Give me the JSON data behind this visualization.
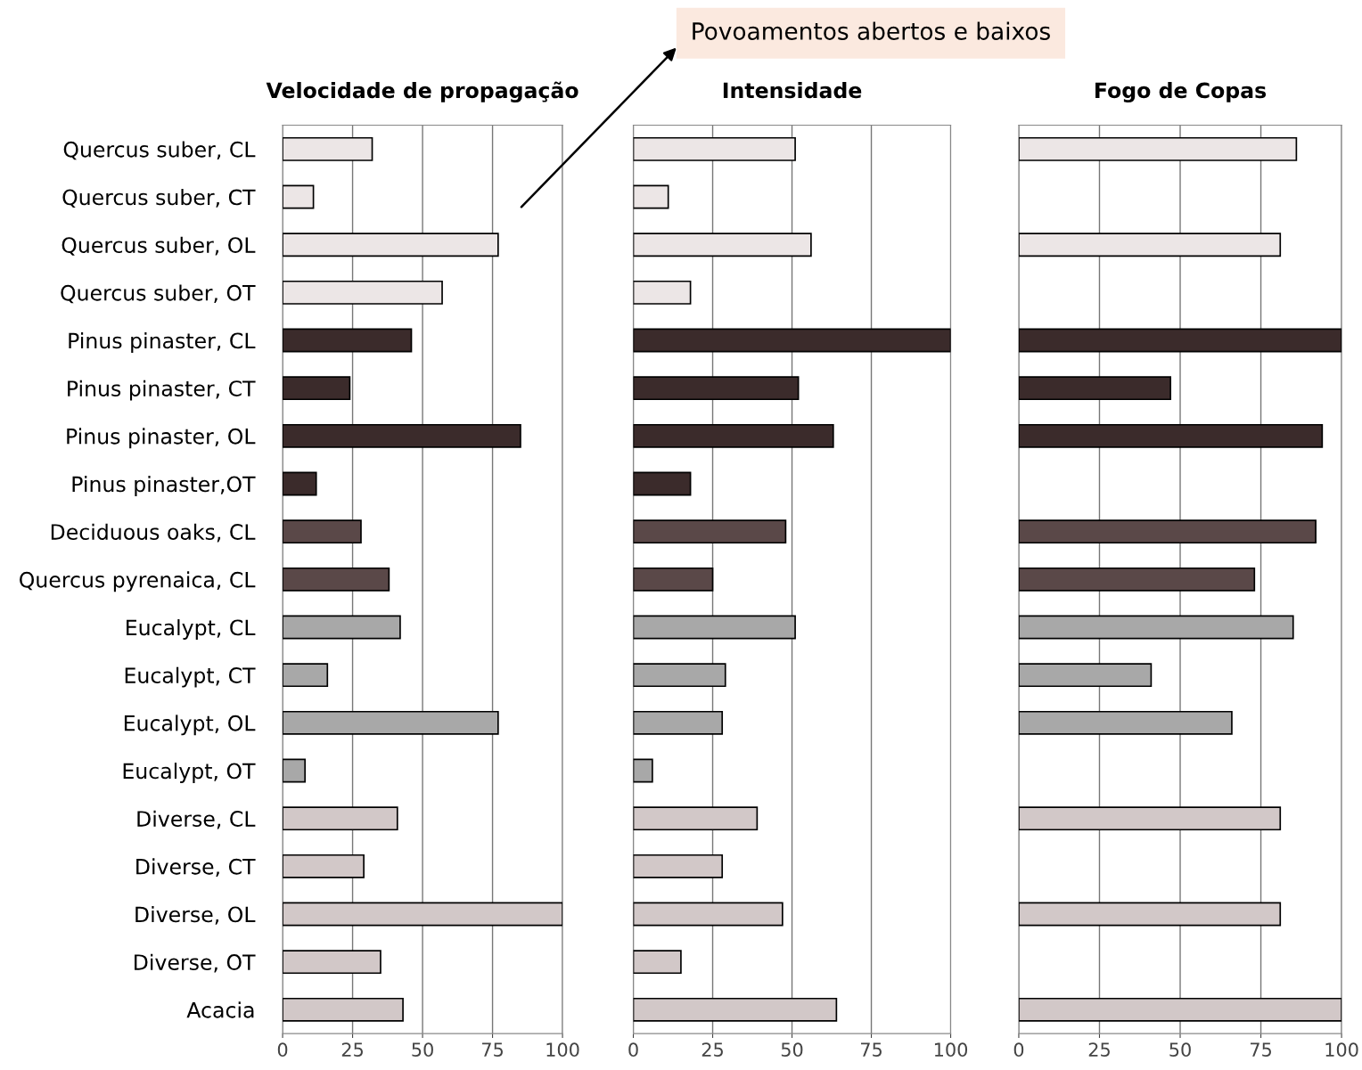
{
  "chart_data": [
    {
      "type": "bar",
      "orientation": "horizontal",
      "title": "Velocidade de propagação",
      "categories": [
        "Quercus suber, CL",
        "Quercus suber, CT",
        "Quercus suber, OL",
        "Quercus suber, OT",
        "Pinus pinaster, CL",
        "Pinus pinaster, CT",
        "Pinus pinaster, OL",
        "Pinus pinaster,OT",
        "Deciduous oaks, CL",
        "Quercus pyrenaica, CL",
        "Eucalypt, CL",
        "Eucalypt, CT",
        "Eucalypt, OL",
        "Eucalypt, OT",
        "Diverse, CL",
        "Diverse, CT",
        "Diverse, OL",
        "Diverse, OT",
        "Acacia"
      ],
      "values": [
        32,
        11,
        77,
        57,
        46,
        24,
        85,
        12,
        28,
        38,
        42,
        16,
        77,
        8,
        41,
        29,
        100,
        35,
        43
      ],
      "colors": [
        "#ece6e6",
        "#ece6e6",
        "#ece6e6",
        "#ece6e6",
        "#3b2b2b",
        "#3b2b2b",
        "#3b2b2b",
        "#3b2b2b",
        "#5a4848",
        "#5a4848",
        "#a8a8a8",
        "#a8a8a8",
        "#a8a8a8",
        "#a8a8a8",
        "#d2c8c8",
        "#d2c8c8",
        "#d2c8c8",
        "#d2c8c8",
        "#d2c8c8"
      ],
      "xlim": [
        0,
        100
      ],
      "xticks": [
        0,
        25,
        50,
        75,
        100
      ],
      "grid": "x",
      "annotations": [
        "Povoamentos abertos e baixos"
      ]
    },
    {
      "type": "bar",
      "orientation": "horizontal",
      "title": "Intensidade",
      "values": [
        51,
        11,
        56,
        18,
        100,
        52,
        63,
        18,
        48,
        25,
        51,
        29,
        28,
        6,
        39,
        28,
        47,
        15,
        64
      ],
      "colors": [
        "#ece6e6",
        "#ece6e6",
        "#ece6e6",
        "#ece6e6",
        "#3b2b2b",
        "#3b2b2b",
        "#3b2b2b",
        "#3b2b2b",
        "#5a4848",
        "#5a4848",
        "#a8a8a8",
        "#a8a8a8",
        "#a8a8a8",
        "#a8a8a8",
        "#d2c8c8",
        "#d2c8c8",
        "#d2c8c8",
        "#d2c8c8",
        "#d2c8c8"
      ],
      "xlim": [
        0,
        100
      ],
      "xticks": [
        0,
        25,
        50,
        75,
        100
      ],
      "grid": "x",
      "tick_labels": "x"
    },
    {
      "type": "bar",
      "orientation": "horizontal",
      "title": "Fogo de Copas",
      "values": [
        86,
        null,
        81,
        null,
        100,
        47,
        94,
        null,
        92,
        73,
        85,
        41,
        66,
        null,
        81,
        null,
        81,
        null,
        100
      ],
      "colors": [
        "#ece6e6",
        "#ece6e6",
        "#ece6e6",
        "#ece6e6",
        "#3b2b2b",
        "#3b2b2b",
        "#3b2b2b",
        "#3b2b2b",
        "#5a4848",
        "#5a4848",
        "#a8a8a8",
        "#a8a8a8",
        "#a8a8a8",
        "#a8a8a8",
        "#d2c8c8",
        "#d2c8c8",
        "#d2c8c8",
        "#d2c8c8",
        "#d2c8c8"
      ],
      "xlim": [
        0,
        100
      ],
      "xticks": [
        0,
        25,
        50,
        75,
        100
      ],
      "grid": "x",
      "tick_labels": "x"
    }
  ]
}
